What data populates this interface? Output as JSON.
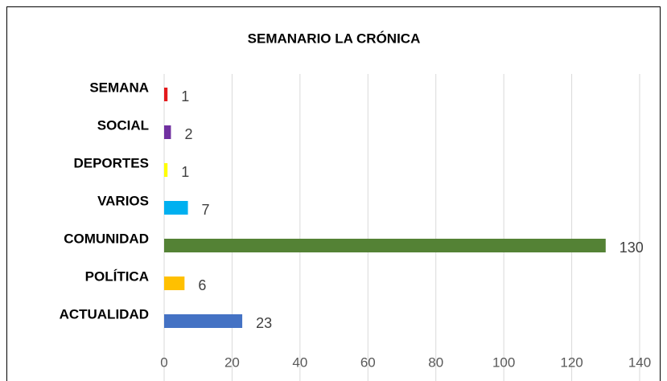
{
  "chart_data": {
    "type": "barh",
    "title": "SEMANARIO  LA CRÓNICA",
    "categories": [
      "SEMANA",
      "SOCIAL",
      "DEPORTES",
      "VARIOS",
      "COMUNIDAD",
      "POLÍTICA",
      "ACTUALIDAD"
    ],
    "values": [
      1,
      2,
      1,
      7,
      130,
      6,
      23
    ],
    "colors": [
      "#e31a1c",
      "#7030a0",
      "#ffff00",
      "#00b0f0",
      "#548235",
      "#ffc000",
      "#4472c4"
    ],
    "xlim": [
      0,
      140
    ],
    "xticks": [
      0,
      20,
      40,
      60,
      80,
      100,
      120,
      140
    ],
    "grid": true
  }
}
